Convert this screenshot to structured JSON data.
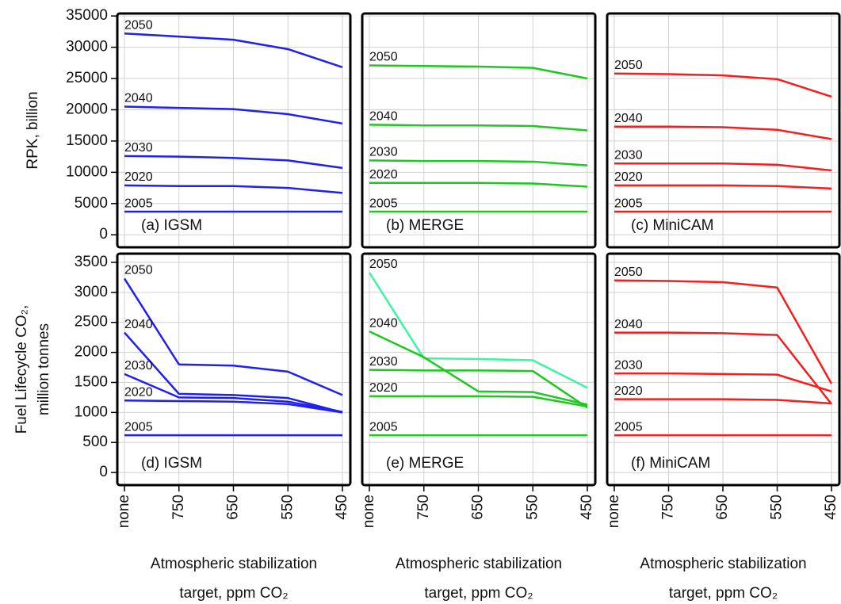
{
  "chart_data": [
    {
      "type": "line",
      "title": "(a) IGSM",
      "ylabel": [
        "RPK, billion"
      ],
      "categories": [
        "none",
        "750",
        "650",
        "550",
        "450"
      ],
      "ylim": [
        -2000,
        35400
      ],
      "yticks": [
        0,
        5000,
        10000,
        15000,
        20000,
        25000,
        30000,
        35000
      ],
      "grid": true,
      "series": [
        {
          "name": "2050",
          "color": "#1f1fee",
          "values": [
            32200,
            31700,
            31200,
            29700,
            26800
          ]
        },
        {
          "name": "2040",
          "color": "#1f1fee",
          "values": [
            20500,
            20300,
            20100,
            19300,
            17800
          ]
        },
        {
          "name": "2030",
          "color": "#1f1fee",
          "values": [
            12600,
            12500,
            12300,
            11900,
            10700
          ]
        },
        {
          "name": "2020",
          "color": "#1f1fee",
          "values": [
            7900,
            7800,
            7800,
            7500,
            6700
          ]
        },
        {
          "name": "2005",
          "color": "#1f1fee",
          "values": [
            3700,
            3700,
            3700,
            3700,
            3700
          ]
        }
      ]
    },
    {
      "type": "line",
      "title": "(b) MERGE",
      "categories": [
        "none",
        "750",
        "650",
        "550",
        "450"
      ],
      "ylim": [
        -2000,
        35400
      ],
      "yticks": [
        0,
        5000,
        10000,
        15000,
        20000,
        25000,
        30000,
        35000
      ],
      "grid": true,
      "series": [
        {
          "name": "2050",
          "color": "#1ec81e",
          "values": [
            27100,
            27000,
            26900,
            26700,
            25000
          ]
        },
        {
          "name": "2040",
          "color": "#1ec81e",
          "values": [
            17600,
            17500,
            17500,
            17400,
            16700
          ]
        },
        {
          "name": "2030",
          "color": "#1ec81e",
          "values": [
            11900,
            11800,
            11800,
            11700,
            11100
          ]
        },
        {
          "name": "2020",
          "color": "#1ec81e",
          "values": [
            8300,
            8300,
            8300,
            8200,
            7700
          ]
        },
        {
          "name": "2005",
          "color": "#1ec81e",
          "values": [
            3700,
            3700,
            3700,
            3700,
            3700
          ]
        }
      ]
    },
    {
      "type": "line",
      "title": "(c) MiniCAM",
      "categories": [
        "none",
        "750",
        "650",
        "550",
        "450"
      ],
      "ylim": [
        -2000,
        35400
      ],
      "yticks": [
        0,
        5000,
        10000,
        15000,
        20000,
        25000,
        30000,
        35000
      ],
      "grid": true,
      "series": [
        {
          "name": "2050",
          "color": "#f51e1e",
          "values": [
            25800,
            25700,
            25500,
            24900,
            22100
          ]
        },
        {
          "name": "2040",
          "color": "#f51e1e",
          "values": [
            17300,
            17300,
            17200,
            16800,
            15300
          ]
        },
        {
          "name": "2030",
          "color": "#f51e1e",
          "values": [
            11400,
            11400,
            11400,
            11200,
            10300
          ]
        },
        {
          "name": "2020",
          "color": "#f51e1e",
          "values": [
            7900,
            7900,
            7900,
            7800,
            7400
          ]
        },
        {
          "name": "2005",
          "color": "#f51e1e",
          "values": [
            3700,
            3700,
            3700,
            3700,
            3700
          ]
        }
      ]
    },
    {
      "type": "line",
      "title": "(d) IGSM",
      "ylabel": [
        "Fuel Lifecycle CO₂,",
        "million tonnes"
      ],
      "xlabel": [
        "Atmospheric stabilization",
        "target, ppm CO₂"
      ],
      "categories": [
        "none",
        "750",
        "650",
        "550",
        "450"
      ],
      "ylim": [
        -210,
        3645
      ],
      "yticks": [
        0,
        500,
        1000,
        1500,
        2000,
        2500,
        3000,
        3500
      ],
      "grid": true,
      "series": [
        {
          "name": "2050",
          "color": "#1f1fee",
          "values": [
            3230,
            1800,
            1780,
            1680,
            1290
          ]
        },
        {
          "name": "2040",
          "color": "#1f1fee",
          "values": [
            2330,
            1310,
            1290,
            1240,
            1000
          ]
        },
        {
          "name": "2030",
          "color": "#1f1fee",
          "values": [
            1640,
            1250,
            1240,
            1180,
            1010
          ]
        },
        {
          "name": "2020",
          "color": "#1f1fee",
          "values": [
            1200,
            1190,
            1180,
            1140,
            1000
          ]
        },
        {
          "name": "2005",
          "color": "#1f1fee",
          "values": [
            620,
            620,
            620,
            620,
            620
          ]
        }
      ]
    },
    {
      "type": "line",
      "title": "(e) MERGE",
      "xlabel": [
        "Atmospheric stabilization",
        "target, ppm CO₂"
      ],
      "categories": [
        "none",
        "750",
        "650",
        "550",
        "450"
      ],
      "ylim": [
        -210,
        3645
      ],
      "yticks": [
        0,
        500,
        1000,
        1500,
        2000,
        2500,
        3000,
        3500
      ],
      "grid": true,
      "series": [
        {
          "name": "2050",
          "color": "#3cf5a0",
          "values": [
            3330,
            1900,
            1890,
            1870,
            1410
          ]
        },
        {
          "name": "2040",
          "color": "#1ec81e",
          "values": [
            2350,
            1920,
            1350,
            1340,
            1130
          ]
        },
        {
          "name": "2030",
          "color": "#1ec81e",
          "values": [
            1710,
            1700,
            1700,
            1690,
            1080
          ]
        },
        {
          "name": "2020",
          "color": "#1ec81e",
          "values": [
            1270,
            1270,
            1270,
            1260,
            1100
          ]
        },
        {
          "name": "2005",
          "color": "#1ec81e",
          "values": [
            620,
            620,
            620,
            620,
            620
          ]
        }
      ]
    },
    {
      "type": "line",
      "title": "(f) MiniCAM",
      "xlabel": [
        "Atmospheric stabilization",
        "target, ppm CO₂"
      ],
      "categories": [
        "none",
        "750",
        "650",
        "550",
        "450"
      ],
      "ylim": [
        -210,
        3645
      ],
      "yticks": [
        0,
        500,
        1000,
        1500,
        2000,
        2500,
        3000,
        3500
      ],
      "grid": true,
      "series": [
        {
          "name": "2050",
          "color": "#f51e1e",
          "values": [
            3200,
            3190,
            3170,
            3080,
            1480
          ]
        },
        {
          "name": "2040",
          "color": "#f51e1e",
          "values": [
            2330,
            2330,
            2320,
            2290,
            1140
          ]
        },
        {
          "name": "2030",
          "color": "#f51e1e",
          "values": [
            1650,
            1650,
            1640,
            1630,
            1350
          ]
        },
        {
          "name": "2020",
          "color": "#f51e1e",
          "values": [
            1220,
            1220,
            1220,
            1210,
            1150
          ]
        },
        {
          "name": "2005",
          "color": "#f51e1e",
          "values": [
            620,
            620,
            620,
            620,
            620
          ]
        }
      ]
    }
  ]
}
